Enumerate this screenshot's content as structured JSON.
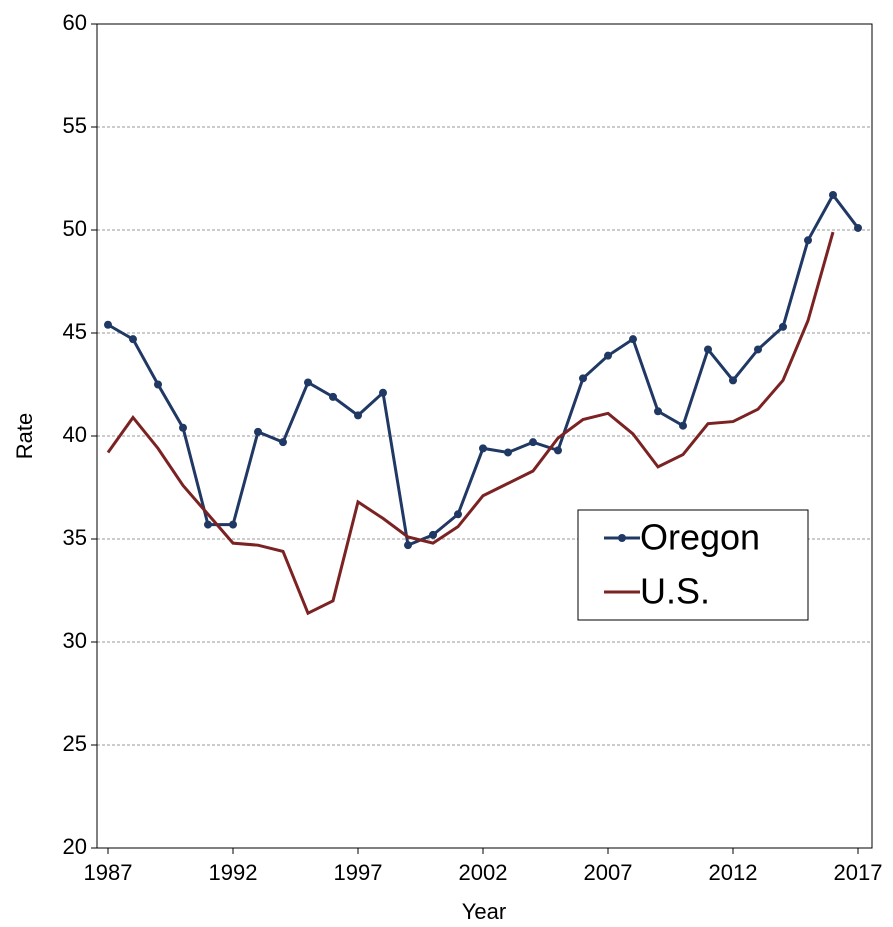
{
  "chart_data": {
    "type": "line",
    "x_label": "Year",
    "y_label": "Rate",
    "x": [
      1987,
      1988,
      1989,
      1990,
      1991,
      1992,
      1993,
      1994,
      1995,
      1996,
      1997,
      1998,
      1999,
      2000,
      2001,
      2002,
      2003,
      2004,
      2005,
      2006,
      2007,
      2008,
      2009,
      2010,
      2011,
      2012,
      2013,
      2014,
      2015,
      2016,
      2017
    ],
    "series": [
      {
        "name": "Oregon",
        "color": "#203864",
        "markers": true,
        "values": [
          45.4,
          44.7,
          42.5,
          40.4,
          35.7,
          35.7,
          40.2,
          39.7,
          42.6,
          41.9,
          41.0,
          42.1,
          34.7,
          35.2,
          36.2,
          39.4,
          39.2,
          39.7,
          39.3,
          42.8,
          43.9,
          44.7,
          41.2,
          40.5,
          44.2,
          42.7,
          44.2,
          45.3,
          49.5,
          51.7,
          50.1
        ]
      },
      {
        "name": "U.S.",
        "color": "#7b2222",
        "markers": false,
        "values": [
          39.2,
          40.9,
          39.4,
          37.6,
          36.2,
          34.8,
          34.7,
          34.4,
          31.4,
          32.0,
          36.8,
          36.0,
          35.1,
          34.8,
          35.6,
          37.1,
          37.7,
          38.3,
          39.9,
          40.8,
          41.1,
          40.1,
          38.5,
          39.1,
          40.6,
          40.7,
          41.3,
          42.7,
          45.6,
          49.9,
          null
        ]
      }
    ],
    "xlim": [
      1986.56,
      2017.56
    ],
    "xticks": [
      1987,
      1992,
      1997,
      2002,
      2007,
      2012,
      2017
    ],
    "ylim": [
      20,
      60
    ],
    "yticks": [
      20,
      25,
      30,
      35,
      40,
      45,
      50,
      55,
      60
    ],
    "grid": true,
    "legend": "right"
  }
}
